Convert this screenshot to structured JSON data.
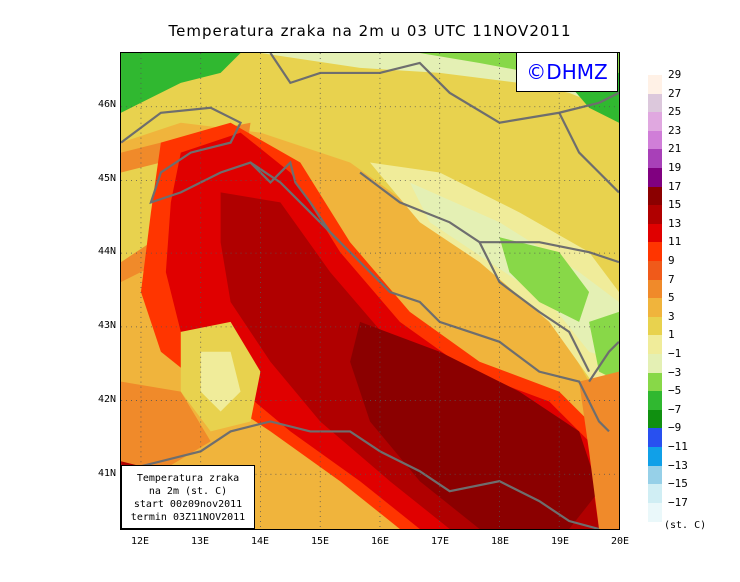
{
  "title": "Temperatura zraka na 2m u 03 UTC 11NOV2011",
  "logo_text": "©DHMZ",
  "info_box": {
    "line1": "Temperatura zraka",
    "line2": "na 2m (st. C)",
    "line3": "start 00z09nov2011",
    "line4": "termin 03Z11NOV2011"
  },
  "lat_labels": [
    "46N",
    "45N",
    "44N",
    "43N",
    "42N",
    "41N"
  ],
  "lon_labels": [
    "12E",
    "13E",
    "14E",
    "15E",
    "16E",
    "17E",
    "18E",
    "19E",
    "20E"
  ],
  "legend": {
    "unit": "(st. C)",
    "labels": [
      "29",
      "27",
      "25",
      "23",
      "21",
      "19",
      "17",
      "15",
      "13",
      "11",
      "9",
      "7",
      "5",
      "3",
      "1",
      "−1",
      "−3",
      "−5",
      "−7",
      "−9",
      "−11",
      "−13",
      "−15",
      "−17"
    ],
    "colors": [
      "#fff1e6",
      "#dcc8dc",
      "#e0a8e0",
      "#d07ed8",
      "#a840b8",
      "#800080",
      "#8b0000",
      "#b00000",
      "#e00000",
      "#ff3500",
      "#f05a1a",
      "#f08a2a",
      "#f0b43c",
      "#e8d24e",
      "#f0ec9a",
      "#e4f0b4",
      "#88d848",
      "#30b830",
      "#109010",
      "#2850f0",
      "#10a0e8",
      "#96d0e8",
      "#d0eef4",
      "#eaf8fa"
    ]
  },
  "map": {
    "lon_range": [
      11.75,
      20.0
    ],
    "lat_range": [
      40.3,
      46.8
    ],
    "grid": "dotted"
  }
}
